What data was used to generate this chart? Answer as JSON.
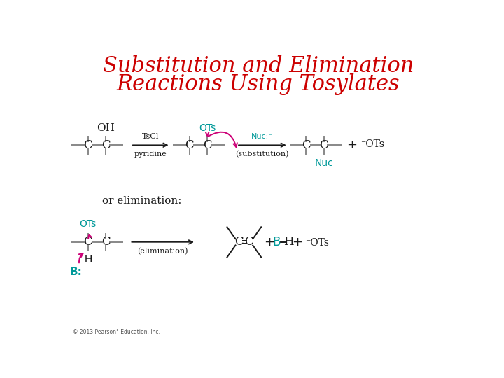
{
  "title_line1": "Substitution and Elimination",
  "title_line2": "Reactions Using Tosylates",
  "title_color": "#cc0000",
  "title_fontsize": 22,
  "bg_color": "#ffffff",
  "black": "#1a1a1a",
  "teal": "#009999",
  "magenta": "#cc0077",
  "gray": "#555555",
  "copyright": "© 2013 Pearson° Education, Inc."
}
